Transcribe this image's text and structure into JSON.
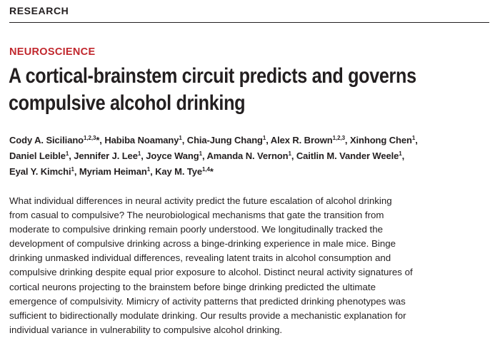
{
  "header": {
    "label": "RESEARCH"
  },
  "article": {
    "section": "NEUROSCIENCE",
    "title_lines": [
      "A cortical-brainstem circuit predicts and governs",
      "compulsive alcohol drinking"
    ]
  },
  "authors": [
    {
      "name": "Cody A. Siciliano",
      "aff": "1,2,3",
      "mark": "*",
      "sep": ", "
    },
    {
      "name": "Habiba Noamany",
      "aff": "1",
      "mark": "",
      "sep": ", "
    },
    {
      "name": "Chia-Jung Chang",
      "aff": "1",
      "mark": "",
      "sep": ", "
    },
    {
      "name": "Alex R. Brown",
      "aff": "1,2,3",
      "mark": "",
      "sep": ", "
    },
    {
      "name": "Xinhong Chen",
      "aff": "1",
      "mark": "",
      "sep": ","
    },
    {
      "name": "Daniel Leible",
      "aff": "1",
      "mark": "",
      "sep": ", "
    },
    {
      "name": "Jennifer J. Lee",
      "aff": "1",
      "mark": "",
      "sep": ", "
    },
    {
      "name": "Joyce Wang",
      "aff": "1",
      "mark": "",
      "sep": ", "
    },
    {
      "name": "Amanda N. Vernon",
      "aff": "1",
      "mark": "",
      "sep": ", "
    },
    {
      "name": "Caitlin M. Vander Weele",
      "aff": "1",
      "mark": "",
      "sep": ","
    },
    {
      "name": "Eyal Y. Kimchi",
      "aff": "1",
      "mark": "",
      "sep": ", "
    },
    {
      "name": "Myriam Heiman",
      "aff": "1",
      "mark": "",
      "sep": ", "
    },
    {
      "name": "Kay M. Tye",
      "aff": "1,4",
      "mark": "*",
      "sep": ""
    }
  ],
  "abstract_lines": [
    "What individual differences in neural activity predict the future escalation of alcohol drinking",
    "from casual to compulsive? The neurobiological mechanisms that gate the transition from",
    "moderate to compulsive drinking remain poorly understood. We longitudinally tracked the",
    "development of compulsive drinking across a binge-drinking experience in male mice. Binge",
    "drinking unmasked individual differences, revealing latent traits in alcohol consumption and",
    "compulsive drinking despite equal prior exposure to alcohol. Distinct neural activity signatures of",
    "cortical neurons projecting to the brainstem before binge drinking predicted the ultimate",
    "emergence of compulsivity. Mimicry of activity patterns that predicted drinking phenotypes was",
    "sufficient to bidirectionally modulate drinking. Our results provide a mechanistic explanation for",
    "individual variance in vulnerability to compulsive alcohol drinking."
  ]
}
